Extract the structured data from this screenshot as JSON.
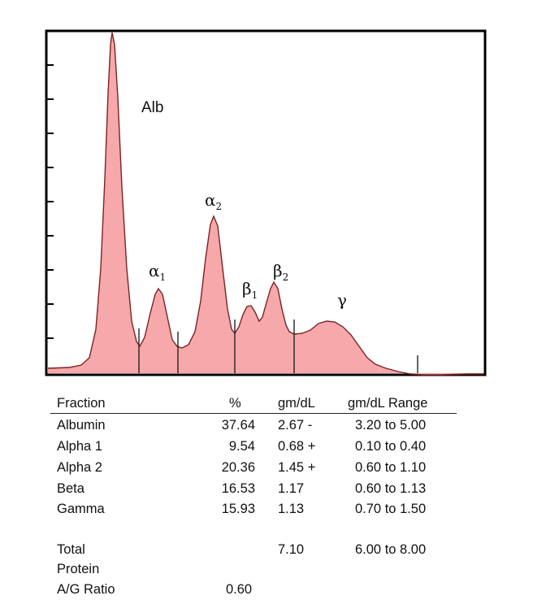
{
  "chart_data": {
    "type": "area",
    "title": "",
    "xlabel": "",
    "ylabel": "",
    "color": "#f7a8aa",
    "line_color": "#7a2323",
    "peaks": [
      {
        "label": "Alb",
        "greek": "",
        "sub": ""
      },
      {
        "label": "",
        "greek": "α",
        "sub": "1"
      },
      {
        "label": "",
        "greek": "α",
        "sub": "2"
      },
      {
        "label": "",
        "greek": "β",
        "sub": "1"
      },
      {
        "label": "",
        "greek": "β",
        "sub": "2"
      },
      {
        "label": "",
        "greek": "γ",
        "sub": ""
      }
    ]
  },
  "table": {
    "headers": {
      "fraction": "Fraction",
      "percent": "%",
      "gmdl": "gm/dL",
      "range": "gm/dL Range"
    },
    "rows": [
      {
        "fraction": "Albumin",
        "percent": "37.64",
        "gmdl": "2.67 -",
        "range": "3.20 to 5.00"
      },
      {
        "fraction": "Alpha 1",
        "percent": "9.54",
        "gmdl": "0.68 +",
        "range": "0.10 to 0.40"
      },
      {
        "fraction": "Alpha 2",
        "percent": "20.36",
        "gmdl": "1.45 +",
        "range": "0.60 to 1.10"
      },
      {
        "fraction": "Beta",
        "percent": "16.53",
        "gmdl": "1.17",
        "range": "0.60 to 1.13"
      },
      {
        "fraction": "Gamma",
        "percent": "15.93",
        "gmdl": "1.13",
        "range": "0.70 to 1.50"
      }
    ],
    "total": {
      "label_line1": "Total",
      "label_line2": "Protein",
      "gmdl": "7.10",
      "range": "6.00 to 8.00"
    },
    "ag_ratio": {
      "label": "A/G Ratio",
      "value": "0.60"
    }
  }
}
